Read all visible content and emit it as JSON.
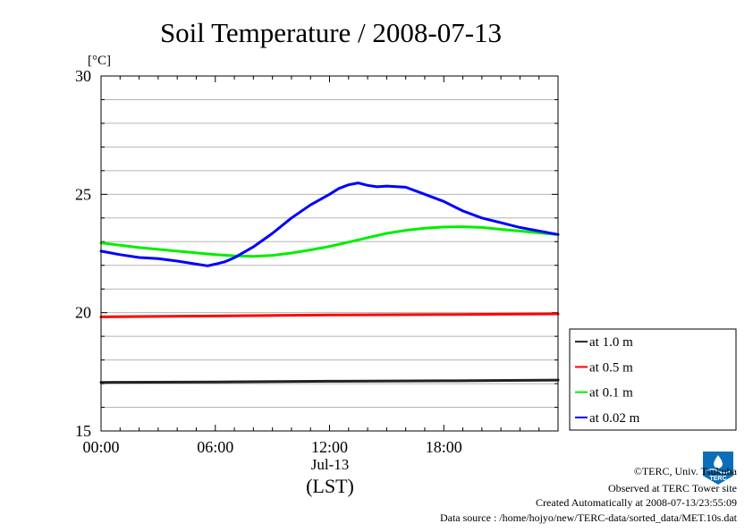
{
  "chart_data": {
    "type": "line",
    "title": "Soil Temperature / 2008-07-13",
    "yunit": "[°C]",
    "xlabel": "(LST)",
    "xdate": "Jul-13",
    "xlim": [
      0,
      24
    ],
    "ylim": [
      15,
      30
    ],
    "xticks": [
      {
        "value": 0,
        "label": "00:00"
      },
      {
        "value": 6,
        "label": "06:00"
      },
      {
        "value": 12,
        "label": "12:00"
      },
      {
        "value": 18,
        "label": "18:00"
      }
    ],
    "yticks": [
      {
        "value": 15,
        "label": "15"
      },
      {
        "value": 20,
        "label": "20"
      },
      {
        "value": 25,
        "label": "25"
      },
      {
        "value": 30,
        "label": "30"
      }
    ],
    "grid": true,
    "legend_position": "right-bottom-outside",
    "series": [
      {
        "name": "at 1.0 m",
        "color": "#222222",
        "x": [
          0,
          6,
          12,
          18,
          24
        ],
        "y": [
          17.05,
          17.07,
          17.1,
          17.12,
          17.15
        ]
      },
      {
        "name": "at 0.5 m",
        "color": "#ff0000",
        "x": [
          0,
          6,
          12,
          18,
          24
        ],
        "y": [
          19.82,
          19.86,
          19.9,
          19.92,
          19.95
        ]
      },
      {
        "name": "at 0.1 m",
        "color": "#00ee00",
        "x": [
          0,
          2,
          4,
          6,
          7,
          8,
          9,
          10,
          11,
          12,
          13,
          14,
          15,
          16,
          17,
          18,
          19,
          20,
          21,
          22,
          23,
          24
        ],
        "y": [
          22.95,
          22.75,
          22.6,
          22.45,
          22.4,
          22.38,
          22.42,
          22.52,
          22.65,
          22.8,
          22.98,
          23.17,
          23.35,
          23.48,
          23.57,
          23.62,
          23.63,
          23.6,
          23.52,
          23.45,
          23.37,
          23.3
        ]
      },
      {
        "name": "at 0.02 m",
        "color": "#0000ff",
        "x": [
          0,
          1,
          2,
          3,
          4,
          5,
          5.6,
          6,
          6.5,
          7,
          8,
          9,
          10,
          11,
          12,
          12.5,
          13,
          13.5,
          14,
          14.5,
          15,
          16,
          17,
          18,
          19,
          20,
          21,
          22,
          23,
          24
        ],
        "y": [
          22.6,
          22.45,
          22.33,
          22.28,
          22.18,
          22.05,
          21.98,
          22.05,
          22.15,
          22.32,
          22.78,
          23.35,
          24.0,
          24.55,
          25.0,
          25.25,
          25.4,
          25.48,
          25.38,
          25.32,
          25.35,
          25.3,
          25.0,
          24.7,
          24.3,
          24.0,
          23.8,
          23.6,
          23.45,
          23.3
        ]
      }
    ]
  },
  "credits": {
    "copyright": "©TERC, Univ. Tsukuba",
    "observed": "Observed at TERC Tower site",
    "created": "Created Automatically at 2008-07-13/23:55:09",
    "source": "Data source : /home/hojyo/new/TERC-data/sorted_data/MET.10s.dat",
    "logo_text": "TERC"
  }
}
